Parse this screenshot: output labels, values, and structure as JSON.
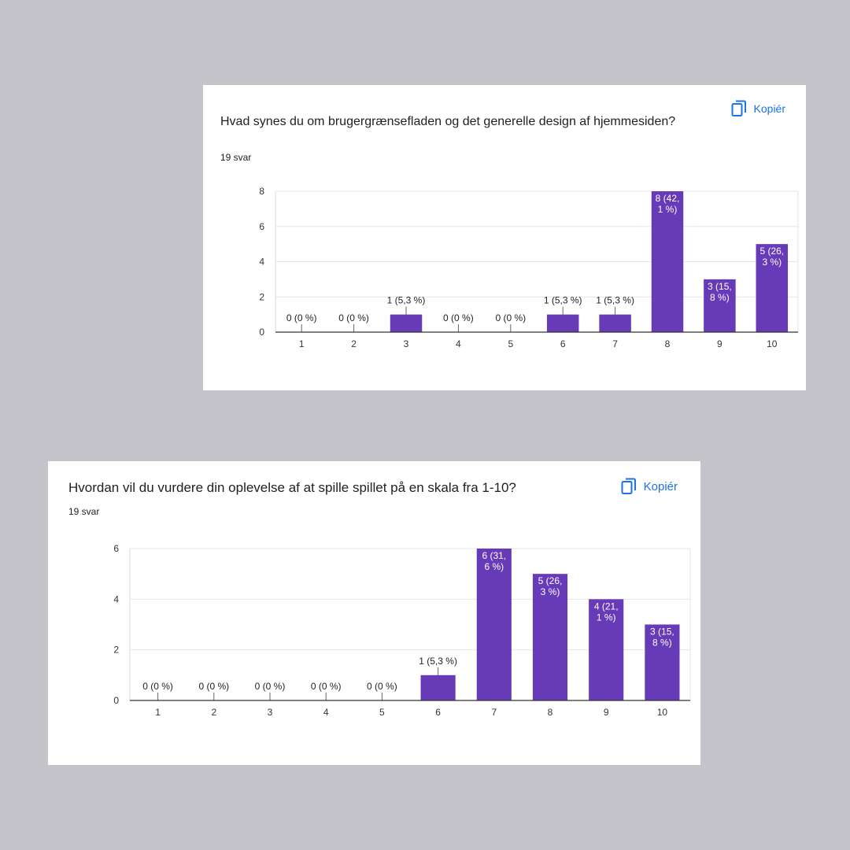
{
  "copy_label": "Kopiér",
  "colors": {
    "bar": "#673ab7",
    "accent": "#1a73e8",
    "grid": "#e6e6e6",
    "axis": "#333333"
  },
  "cards": [
    {
      "title": "Hvad synes du om brugergrænsefladen og det generelle design af hjemmesiden?",
      "responses": "19 svar"
    },
    {
      "title": "Hvordan vil du vurdere din oplevelse af at spille spillet på en skala fra 1-10?",
      "responses": "19 svar"
    }
  ],
  "chart_data": [
    {
      "type": "bar",
      "title": "Hvad synes du om brugergrænsefladen og det generelle design af hjemmesiden?",
      "categories": [
        "1",
        "2",
        "3",
        "4",
        "5",
        "6",
        "7",
        "8",
        "9",
        "10"
      ],
      "values": [
        0,
        0,
        1,
        0,
        0,
        1,
        1,
        8,
        3,
        5
      ],
      "data_labels": [
        "0 (0 %)",
        "0 (0 %)",
        "1 (5,3 %)",
        "0 (0 %)",
        "0 (0 %)",
        "1 (5,3 %)",
        "1 (5,3 %)",
        "8 (42,\n1 %)",
        "3 (15,\n8 %)",
        "5 (26,\n3 %)"
      ],
      "xlabel": "",
      "ylabel": "",
      "ylim": [
        0,
        8
      ],
      "yticks": [
        0,
        2,
        4,
        6,
        8
      ],
      "grid": true
    },
    {
      "type": "bar",
      "title": "Hvordan vil du vurdere din oplevelse af at spille spillet på en skala fra 1-10?",
      "categories": [
        "1",
        "2",
        "3",
        "4",
        "5",
        "6",
        "7",
        "8",
        "9",
        "10"
      ],
      "values": [
        0,
        0,
        0,
        0,
        0,
        1,
        6,
        5,
        4,
        3
      ],
      "data_labels": [
        "0 (0 %)",
        "0 (0 %)",
        "0 (0 %)",
        "0 (0 %)",
        "0 (0 %)",
        "1 (5,3 %)",
        "6 (31,\n6 %)",
        "5 (26,\n3 %)",
        "4 (21,\n1 %)",
        "3 (15,\n8 %)"
      ],
      "xlabel": "",
      "ylabel": "",
      "ylim": [
        0,
        6
      ],
      "yticks": [
        0,
        2,
        4,
        6
      ],
      "grid": true
    }
  ]
}
